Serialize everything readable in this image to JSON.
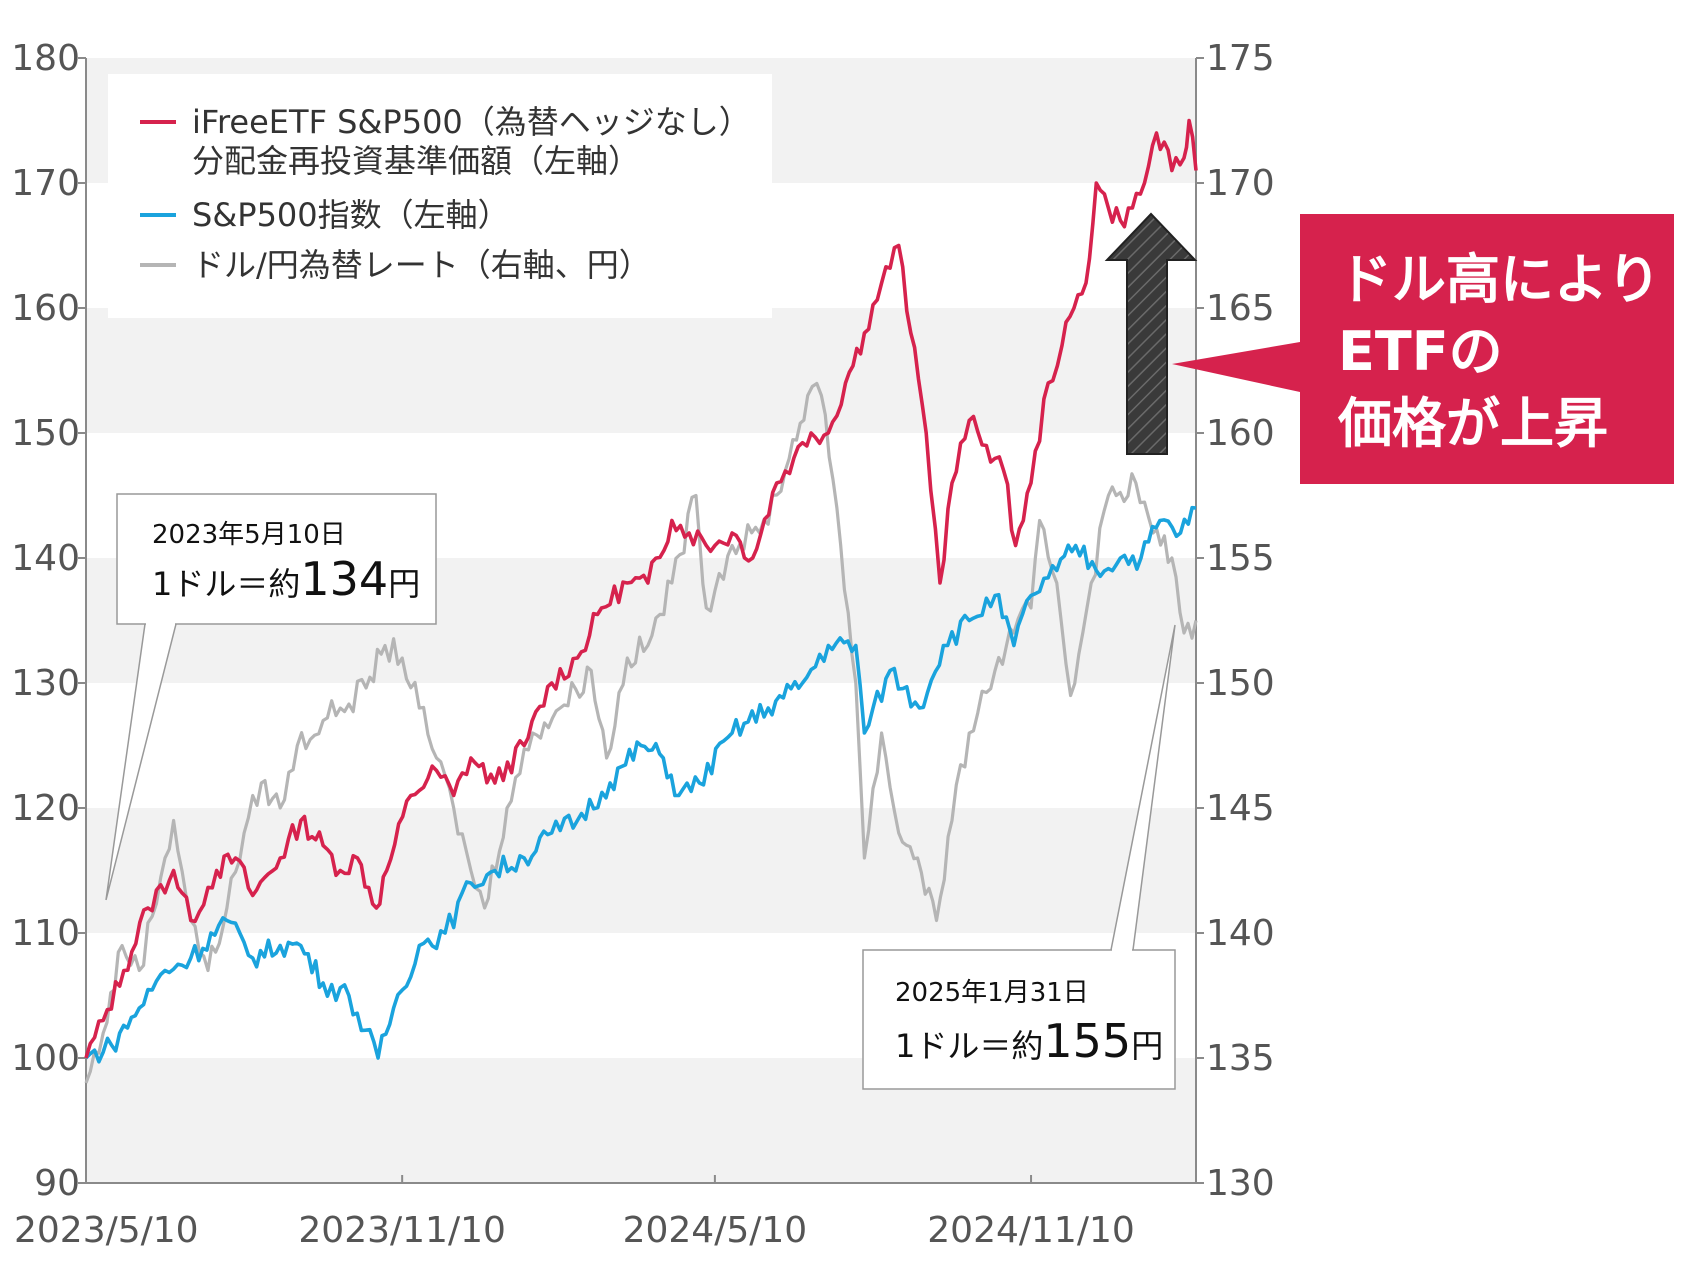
{
  "chart_data": {
    "type": "line",
    "x_ticks": [
      "2023/5/10",
      "2023/11/10",
      "2024/5/10",
      "2024/11/10"
    ],
    "x_range": [
      "2023/5/10",
      "2025/2/14"
    ],
    "y_left": {
      "range": [
        90,
        180
      ],
      "ticks": [
        90,
        100,
        110,
        120,
        130,
        140,
        150,
        160,
        170,
        180
      ]
    },
    "y_right": {
      "range": [
        130,
        175
      ],
      "ticks": [
        130,
        135,
        140,
        145,
        150,
        155,
        160,
        165,
        170,
        175
      ]
    },
    "grid": "alternating horizontal bands",
    "legend_position": "top-left",
    "legend": [
      {
        "key": "etf",
        "line1": "iFreeETF S&P500（為替ヘッジなし）",
        "line2": "分配金再投資基準価額（左軸）",
        "color": "#d6224d"
      },
      {
        "key": "sp500",
        "line1": "S&P500指数（左軸）",
        "line2": "",
        "color": "#1aa3dd"
      },
      {
        "key": "fx",
        "line1": "ドル/円為替レート（右軸、円）",
        "line2": "",
        "color": "#b5b5b5"
      }
    ],
    "series": [
      {
        "name": "iFreeETF S&P500（為替ヘッジなし）分配金再投資基準価額（左軸）",
        "axis": "left",
        "color": "#d6224d",
        "points": [
          [
            "2023-05-10",
            100
          ],
          [
            "2023-05-20",
            103
          ],
          [
            "2023-06-01",
            107
          ],
          [
            "2023-06-15",
            112
          ],
          [
            "2023-06-30",
            115
          ],
          [
            "2023-07-10",
            111
          ],
          [
            "2023-07-25",
            115
          ],
          [
            "2023-08-05",
            116
          ],
          [
            "2023-08-15",
            113
          ],
          [
            "2023-08-31",
            116
          ],
          [
            "2023-09-12",
            119
          ],
          [
            "2023-09-25",
            117
          ],
          [
            "2023-10-05",
            115
          ],
          [
            "2023-10-15",
            116
          ],
          [
            "2023-10-26",
            112
          ],
          [
            "2023-11-01",
            115
          ],
          [
            "2023-11-15",
            121
          ],
          [
            "2023-11-30",
            123
          ],
          [
            "2023-12-10",
            121
          ],
          [
            "2023-12-20",
            124
          ],
          [
            "2024-01-03",
            122
          ],
          [
            "2024-01-20",
            125
          ],
          [
            "2024-02-05",
            130
          ],
          [
            "2024-02-20",
            132
          ],
          [
            "2024-03-05",
            136
          ],
          [
            "2024-03-20",
            138
          ],
          [
            "2024-04-01",
            138
          ],
          [
            "2024-04-15",
            143
          ],
          [
            "2024-04-25",
            142
          ],
          [
            "2024-05-10",
            141
          ],
          [
            "2024-05-20",
            142
          ],
          [
            "2024-06-01",
            140
          ],
          [
            "2024-06-15",
            146
          ],
          [
            "2024-06-25",
            148
          ],
          [
            "2024-07-05",
            150
          ],
          [
            "2024-07-15",
            150
          ],
          [
            "2024-07-25",
            154
          ],
          [
            "2024-08-05",
            158
          ],
          [
            "2024-08-15",
            162
          ],
          [
            "2024-08-25",
            165
          ],
          [
            "2024-09-01",
            158
          ],
          [
            "2024-09-10",
            150
          ],
          [
            "2024-09-18",
            138
          ],
          [
            "2024-09-25",
            146
          ],
          [
            "2024-10-05",
            151
          ],
          [
            "2024-10-15",
            149
          ],
          [
            "2024-10-25",
            147
          ],
          [
            "2024-11-01",
            141
          ],
          [
            "2024-11-10",
            146
          ],
          [
            "2024-11-20",
            154
          ],
          [
            "2024-11-28",
            157
          ],
          [
            "2024-12-05",
            160
          ],
          [
            "2024-12-12",
            162
          ],
          [
            "2024-12-18",
            170
          ],
          [
            "2024-12-25",
            168
          ],
          [
            "2025-01-01",
            167
          ],
          [
            "2025-01-08",
            168
          ],
          [
            "2025-01-15",
            170
          ],
          [
            "2025-01-22",
            174
          ],
          [
            "2025-01-31",
            171
          ],
          [
            "2025-02-07",
            172
          ],
          [
            "2025-02-10",
            175
          ],
          [
            "2025-02-14",
            171
          ]
        ]
      },
      {
        "name": "S&P500指数（左軸）",
        "axis": "left",
        "color": "#1aa3dd",
        "points": [
          [
            "2023-05-10",
            100
          ],
          [
            "2023-05-25",
            101
          ],
          [
            "2023-06-10",
            104
          ],
          [
            "2023-06-25",
            107
          ],
          [
            "2023-07-10",
            108
          ],
          [
            "2023-07-31",
            111
          ],
          [
            "2023-08-15",
            108
          ],
          [
            "2023-08-31",
            109
          ],
          [
            "2023-09-12",
            109
          ],
          [
            "2023-09-25",
            106
          ],
          [
            "2023-10-10",
            105
          ],
          [
            "2023-10-27",
            100
          ],
          [
            "2023-11-05",
            104
          ],
          [
            "2023-11-20",
            109
          ],
          [
            "2023-12-05",
            110
          ],
          [
            "2023-12-20",
            114
          ],
          [
            "2024-01-03",
            115
          ],
          [
            "2024-01-20",
            116
          ],
          [
            "2024-02-05",
            118
          ],
          [
            "2024-02-20",
            119
          ],
          [
            "2024-03-10",
            122
          ],
          [
            "2024-03-28",
            125
          ],
          [
            "2024-04-10",
            124
          ],
          [
            "2024-04-19",
            121
          ],
          [
            "2024-05-01",
            122
          ],
          [
            "2024-05-20",
            126
          ],
          [
            "2024-06-10",
            128
          ],
          [
            "2024-06-30",
            130
          ],
          [
            "2024-07-15",
            133
          ],
          [
            "2024-07-31",
            133
          ],
          [
            "2024-08-05",
            126
          ],
          [
            "2024-08-20",
            131
          ],
          [
            "2024-09-06",
            128
          ],
          [
            "2024-09-20",
            133
          ],
          [
            "2024-10-05",
            135
          ],
          [
            "2024-10-20",
            137
          ],
          [
            "2024-10-31",
            133
          ],
          [
            "2024-11-10",
            137
          ],
          [
            "2024-11-25",
            139
          ],
          [
            "2024-12-06",
            141
          ],
          [
            "2024-12-18",
            139
          ],
          [
            "2025-01-01",
            140
          ],
          [
            "2025-01-13",
            140
          ],
          [
            "2025-01-24",
            143
          ],
          [
            "2025-02-05",
            142
          ],
          [
            "2025-02-14",
            144
          ]
        ]
      },
      {
        "name": "ドル/円為替レート（右軸、円）",
        "axis": "right",
        "color": "#b5b5b5",
        "points": [
          [
            "2023-05-10",
            134
          ],
          [
            "2023-05-20",
            136
          ],
          [
            "2023-05-31",
            139.5
          ],
          [
            "2023-06-10",
            138.5
          ],
          [
            "2023-06-25",
            143
          ],
          [
            "2023-06-30",
            144.5
          ],
          [
            "2023-07-10",
            140.5
          ],
          [
            "2023-07-20",
            138.5
          ],
          [
            "2023-07-31",
            141
          ],
          [
            "2023-08-10",
            144
          ],
          [
            "2023-08-20",
            146
          ],
          [
            "2023-08-31",
            145
          ],
          [
            "2023-09-10",
            147.5
          ],
          [
            "2023-09-25",
            148.5
          ],
          [
            "2023-10-05",
            149
          ],
          [
            "2023-10-20",
            149.8
          ],
          [
            "2023-10-31",
            151.5
          ],
          [
            "2023-11-10",
            151
          ],
          [
            "2023-11-20",
            149
          ],
          [
            "2023-11-30",
            147
          ],
          [
            "2023-12-10",
            145
          ],
          [
            "2023-12-20",
            142.5
          ],
          [
            "2023-12-28",
            141
          ],
          [
            "2024-01-10",
            145
          ],
          [
            "2024-01-25",
            148
          ],
          [
            "2024-02-10",
            149
          ],
          [
            "2024-02-28",
            150.5
          ],
          [
            "2024-03-08",
            147
          ],
          [
            "2024-03-20",
            151
          ],
          [
            "2024-04-01",
            151.5
          ],
          [
            "2024-04-15",
            154
          ],
          [
            "2024-04-29",
            157.5
          ],
          [
            "2024-05-05",
            153
          ],
          [
            "2024-05-20",
            155.5
          ],
          [
            "2024-06-05",
            156
          ],
          [
            "2024-06-20",
            158.5
          ],
          [
            "2024-07-03",
            161.5
          ],
          [
            "2024-07-11",
            161.5
          ],
          [
            "2024-07-20",
            157
          ],
          [
            "2024-07-31",
            150
          ],
          [
            "2024-08-05",
            143
          ],
          [
            "2024-08-15",
            148
          ],
          [
            "2024-08-25",
            144
          ],
          [
            "2024-09-05",
            143
          ],
          [
            "2024-09-16",
            140.5
          ],
          [
            "2024-09-25",
            144.5
          ],
          [
            "2024-10-05",
            148
          ],
          [
            "2024-10-20",
            150.5
          ],
          [
            "2024-10-31",
            152
          ],
          [
            "2024-11-10",
            153
          ],
          [
            "2024-11-15",
            156.5
          ],
          [
            "2024-11-25",
            154
          ],
          [
            "2024-12-03",
            149.5
          ],
          [
            "2024-12-15",
            154
          ],
          [
            "2024-12-25",
            157.5
          ],
          [
            "2025-01-10",
            158
          ],
          [
            "2025-01-20",
            156
          ],
          [
            "2025-01-31",
            155
          ],
          [
            "2025-02-07",
            152
          ],
          [
            "2025-02-14",
            152.5
          ]
        ]
      }
    ]
  },
  "annotations": {
    "start": {
      "date": "2023年5月10日",
      "prefix": "1ドル＝約",
      "value": "134",
      "unit": "円"
    },
    "end": {
      "date": "2025年1月31日",
      "prefix": "1ドル＝約",
      "value": "155",
      "unit": "円"
    }
  },
  "callout": {
    "lines": [
      "ドル高により",
      "ETFの",
      "価格が上昇"
    ],
    "color": "#d6224d"
  }
}
